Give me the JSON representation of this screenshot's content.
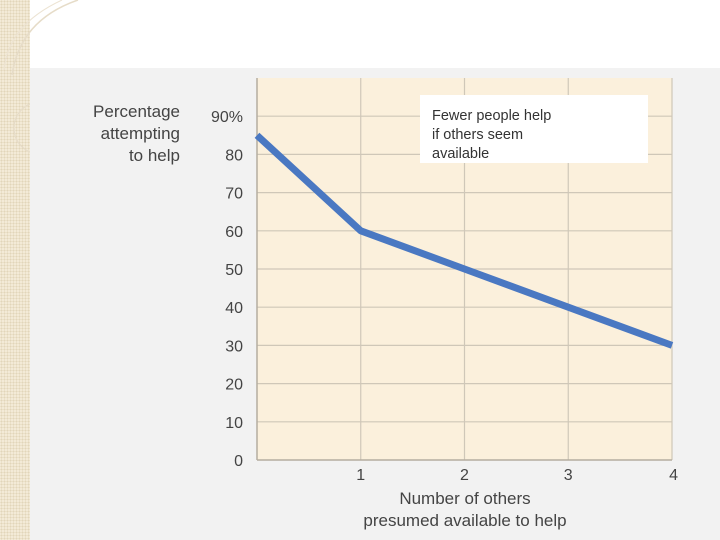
{
  "chart_data": {
    "type": "line",
    "ylabel": [
      "Percentage",
      "attempting",
      "to help"
    ],
    "xlabel": [
      "Number of others",
      "presumed available to help"
    ],
    "annotation": [
      "Fewer people help",
      "if others seem",
      "available"
    ],
    "x": [
      0,
      1,
      2,
      3,
      4
    ],
    "y": [
      85,
      60,
      50,
      40,
      30
    ],
    "xticks": [
      "1",
      "2",
      "3",
      "4"
    ],
    "xtick_values": [
      1,
      2,
      3,
      4
    ],
    "yticks": [
      "0",
      "10",
      "20",
      "30",
      "40",
      "50",
      "60",
      "70",
      "80",
      "90%"
    ],
    "ytick_values": [
      0,
      10,
      20,
      30,
      40,
      50,
      60,
      70,
      80,
      90
    ],
    "xlim": [
      0,
      4
    ],
    "ylim": [
      0,
      100
    ],
    "grid": true,
    "colors": {
      "line": "#4a78c2",
      "plot_bg": "#fbf0dc",
      "grid": "#cfc7b8",
      "panel_bg": "#f2f2f2"
    }
  }
}
